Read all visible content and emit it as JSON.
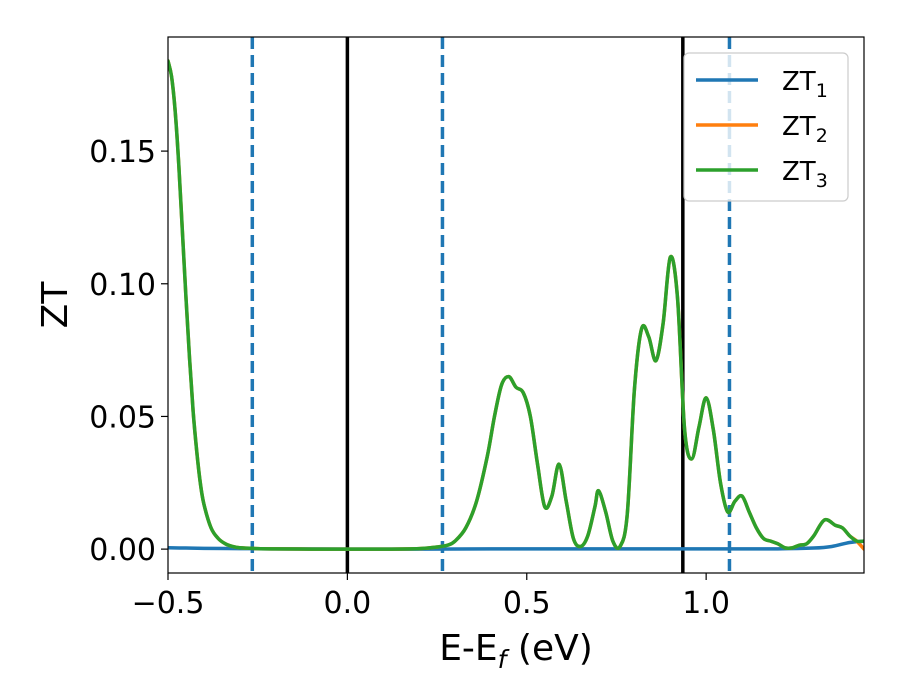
{
  "chart_data": {
    "type": "line",
    "xlabel": "E-E",
    "xlabel_sub": "f",
    "xlabel_unit": "(eV)",
    "ylabel": "ZT",
    "xlim": [
      -0.5,
      1.44
    ],
    "ylim": [
      -0.009,
      0.193
    ],
    "xticks": [
      -0.5,
      0.0,
      0.5,
      1.0
    ],
    "xtick_labels": [
      "−0.5",
      "0.0",
      "0.5",
      "1.0"
    ],
    "yticks": [
      0.0,
      0.05,
      0.1,
      0.15
    ],
    "ytick_labels": [
      "0.00",
      "0.05",
      "0.10",
      "0.15"
    ],
    "grid": false,
    "legend_position": "top-right",
    "vlines_solid": [
      0.0,
      0.935
    ],
    "vlines_dashed": [
      -0.265,
      0.265,
      1.065
    ],
    "vline_solid_color": "#000000",
    "vline_dashed_color": "#1f77b4",
    "series": [
      {
        "name": "ZT",
        "sub": "1",
        "color": "#1f77b4",
        "x": [
          -0.5,
          -0.45,
          -0.4,
          -0.3,
          -0.2,
          0.0,
          0.2,
          0.4,
          0.6,
          0.8,
          1.0,
          1.2,
          1.3,
          1.35,
          1.4,
          1.44
        ],
        "y": [
          0.0005,
          0.0004,
          0.0003,
          0.0002,
          0.0001,
          0.0,
          0.0,
          0.0001,
          0.0001,
          0.0001,
          0.0001,
          0.0001,
          0.0004,
          0.001,
          0.0025,
          0.003
        ]
      },
      {
        "name": "ZT",
        "sub": "2",
        "color": "#ff7f0e",
        "x": [
          -0.5,
          -0.49,
          -0.48,
          -0.47,
          -0.46,
          -0.45,
          -0.44,
          -0.43,
          -0.42,
          -0.41,
          -0.4,
          -0.38,
          -0.36,
          -0.34,
          -0.32,
          -0.3,
          -0.25,
          -0.2,
          -0.1,
          0.0,
          0.1,
          0.2,
          0.25,
          0.28,
          0.3,
          0.33,
          0.36,
          0.39,
          0.41,
          0.43,
          0.45,
          0.47,
          0.49,
          0.51,
          0.53,
          0.55,
          0.57,
          0.59,
          0.61,
          0.63,
          0.65,
          0.67,
          0.69,
          0.7,
          0.72,
          0.74,
          0.76,
          0.78,
          0.8,
          0.82,
          0.84,
          0.86,
          0.88,
          0.9,
          0.92,
          0.94,
          0.96,
          0.98,
          1.0,
          1.02,
          1.04,
          1.06,
          1.08,
          1.1,
          1.12,
          1.14,
          1.16,
          1.18,
          1.2,
          1.22,
          1.24,
          1.26,
          1.28,
          1.3,
          1.33,
          1.36,
          1.38,
          1.4,
          1.42,
          1.44
        ],
        "y": [
          0.184,
          0.178,
          0.165,
          0.145,
          0.12,
          0.095,
          0.072,
          0.052,
          0.037,
          0.025,
          0.017,
          0.008,
          0.004,
          0.002,
          0.001,
          0.0005,
          0.0002,
          0.0001,
          0.0,
          0.0,
          0.0,
          0.0002,
          0.0008,
          0.0015,
          0.003,
          0.008,
          0.018,
          0.035,
          0.05,
          0.062,
          0.065,
          0.061,
          0.059,
          0.05,
          0.032,
          0.016,
          0.02,
          0.032,
          0.018,
          0.004,
          0.001,
          0.005,
          0.016,
          0.022,
          0.014,
          0.003,
          0.001,
          0.013,
          0.06,
          0.083,
          0.08,
          0.071,
          0.085,
          0.11,
          0.095,
          0.045,
          0.034,
          0.046,
          0.057,
          0.045,
          0.025,
          0.014,
          0.018,
          0.02,
          0.014,
          0.008,
          0.004,
          0.003,
          0.002,
          0.0005,
          0.0005,
          0.0015,
          0.002,
          0.005,
          0.011,
          0.009,
          0.008,
          0.005,
          0.003,
          0.0
        ]
      },
      {
        "name": "ZT",
        "sub": "3",
        "color": "#2ca02c",
        "x": [
          -0.5,
          -0.49,
          -0.48,
          -0.47,
          -0.46,
          -0.45,
          -0.44,
          -0.43,
          -0.42,
          -0.41,
          -0.4,
          -0.38,
          -0.36,
          -0.34,
          -0.32,
          -0.3,
          -0.25,
          -0.2,
          -0.1,
          0.0,
          0.1,
          0.2,
          0.25,
          0.28,
          0.3,
          0.33,
          0.36,
          0.39,
          0.41,
          0.43,
          0.45,
          0.47,
          0.49,
          0.51,
          0.53,
          0.55,
          0.57,
          0.59,
          0.61,
          0.63,
          0.65,
          0.67,
          0.69,
          0.7,
          0.72,
          0.74,
          0.76,
          0.78,
          0.8,
          0.82,
          0.84,
          0.86,
          0.88,
          0.9,
          0.92,
          0.94,
          0.96,
          0.98,
          1.0,
          1.02,
          1.04,
          1.06,
          1.08,
          1.1,
          1.12,
          1.14,
          1.16,
          1.18,
          1.2,
          1.22,
          1.24,
          1.26,
          1.28,
          1.3,
          1.33,
          1.36,
          1.38,
          1.4,
          1.42,
          1.44
        ],
        "y": [
          0.184,
          0.178,
          0.165,
          0.145,
          0.12,
          0.095,
          0.072,
          0.052,
          0.037,
          0.025,
          0.017,
          0.008,
          0.004,
          0.002,
          0.001,
          0.0005,
          0.0002,
          0.0001,
          0.0,
          0.0,
          0.0,
          0.0002,
          0.0008,
          0.0015,
          0.003,
          0.008,
          0.018,
          0.035,
          0.05,
          0.062,
          0.065,
          0.061,
          0.059,
          0.05,
          0.032,
          0.016,
          0.02,
          0.032,
          0.018,
          0.004,
          0.001,
          0.005,
          0.016,
          0.022,
          0.014,
          0.003,
          0.001,
          0.013,
          0.06,
          0.083,
          0.08,
          0.071,
          0.085,
          0.11,
          0.095,
          0.045,
          0.034,
          0.046,
          0.057,
          0.045,
          0.025,
          0.014,
          0.018,
          0.02,
          0.014,
          0.008,
          0.004,
          0.003,
          0.002,
          0.0005,
          0.0005,
          0.0015,
          0.002,
          0.005,
          0.011,
          0.009,
          0.008,
          0.005,
          0.003,
          0.003
        ]
      }
    ]
  }
}
